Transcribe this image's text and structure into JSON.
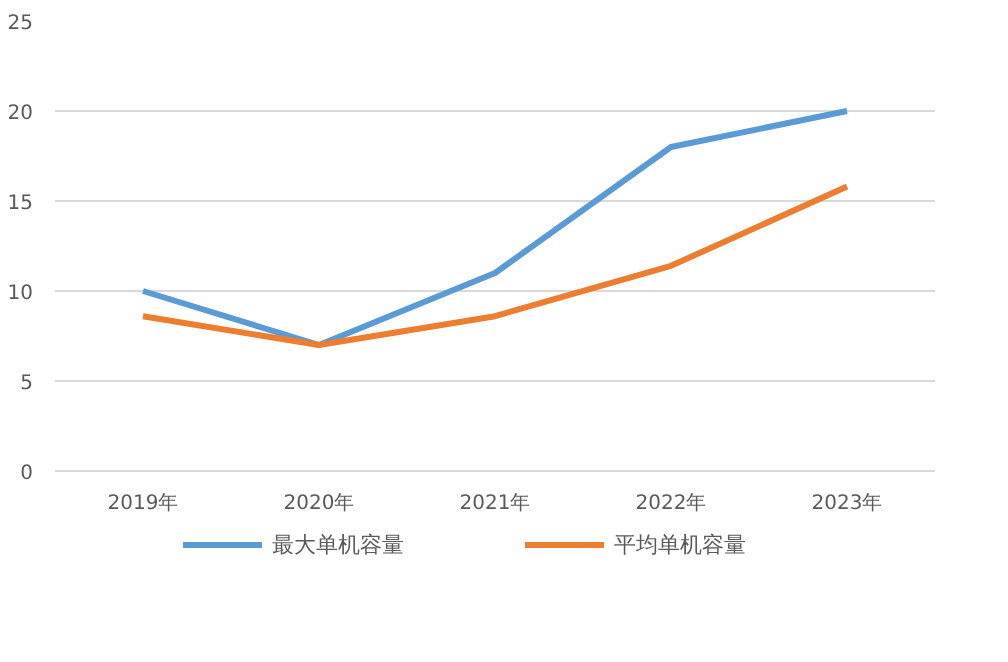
{
  "chart_data": {
    "type": "line",
    "categories": [
      "2019年",
      "2020年",
      "2021年",
      "2022年",
      "2023年"
    ],
    "series": [
      {
        "name": "最大单机容量",
        "color": "#5b9bd5",
        "values": [
          10,
          7,
          11,
          18,
          20
        ]
      },
      {
        "name": "平均单机容量",
        "color": "#ed7d31",
        "values": [
          8.6,
          7,
          8.6,
          11.4,
          15.8
        ]
      }
    ],
    "ylim": [
      0,
      25
    ],
    "yticks": [
      0,
      5,
      10,
      15,
      20,
      25
    ],
    "grid": "y",
    "legend": "bottom",
    "marker": "none",
    "line_style": "solid"
  }
}
